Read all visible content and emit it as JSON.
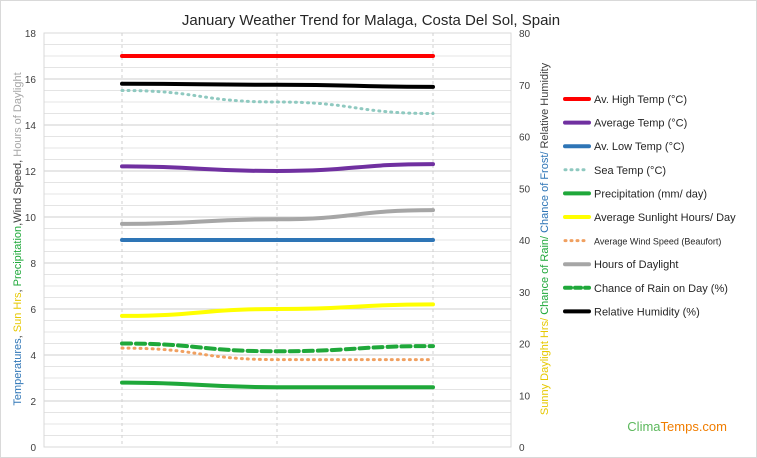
{
  "chart_data": {
    "type": "line",
    "title": "January Weather Trend for Malaga, Costa Del Sol, Spain",
    "x": [
      "1",
      "2",
      "3"
    ],
    "y_left": {
      "range": [
        0,
        18
      ],
      "ticks": [
        "0",
        "2",
        "4",
        "6",
        "8",
        "10",
        "12",
        "14",
        "16",
        "18"
      ],
      "label_parts": [
        {
          "text": "Temperatures",
          "color": "#2e75b6"
        },
        {
          "text": ", ",
          "color": "#404040"
        },
        {
          "text": "Sun Hrs",
          "color": "#e6c800"
        },
        {
          "text": ", ",
          "color": "#404040"
        },
        {
          "text": "Precipitation",
          "color": "#1fa83a"
        },
        {
          "text": ",Wind Speed, ",
          "color": "#404040"
        },
        {
          "text": "Hours of Daylight",
          "color": "#a6a6a6"
        }
      ]
    },
    "y_right": {
      "range": [
        0,
        80
      ],
      "ticks": [
        "0",
        "10",
        "20",
        "30",
        "40",
        "50",
        "60",
        "70",
        "80"
      ],
      "label_parts": [
        {
          "text": "Sunny Daylight Hrs/",
          "color": "#e6c800"
        },
        {
          "text": " Chance of Rain/",
          "color": "#1fa83a"
        },
        {
          "text": " Chance of Frost/",
          "color": "#2e75b6"
        },
        {
          "text": " Relative Humidity",
          "color": "#404040"
        }
      ]
    },
    "grid": true,
    "legend_position": "right",
    "series": [
      {
        "name": "Av. High Temp (°C)",
        "axis": "left",
        "color": "#ff0000",
        "dash": "solid",
        "values": [
          17,
          17,
          17
        ]
      },
      {
        "name": "Average Temp (°C)",
        "axis": "left",
        "color": "#7030a0",
        "dash": "solid",
        "values": [
          12.2,
          12.0,
          12.3
        ]
      },
      {
        "name": "Av. Low Temp (°C)",
        "axis": "left",
        "color": "#2e75b6",
        "dash": "solid",
        "values": [
          9,
          9,
          9
        ]
      },
      {
        "name": "Sea Temp (°C)",
        "axis": "left",
        "color": "#8fc9c0",
        "dash": "dot",
        "values": [
          15.5,
          15.0,
          14.5
        ]
      },
      {
        "name": "Precipitation (mm/ day)",
        "axis": "left",
        "color": "#1fa83a",
        "dash": "solid",
        "values": [
          2.8,
          2.6,
          2.6
        ]
      },
      {
        "name": "Average Sunlight Hours/ Day",
        "axis": "left",
        "color": "#ffff00",
        "dash": "solid",
        "values": [
          5.7,
          6.0,
          6.2
        ]
      },
      {
        "name": "Average Wind Speed (Beaufort)",
        "axis": "left",
        "color": "#f0a060",
        "dash": "dot",
        "small_label": true,
        "values": [
          4.3,
          3.8,
          3.8
        ]
      },
      {
        "name": "Hours of Daylight",
        "axis": "left",
        "color": "#a6a6a6",
        "dash": "solid",
        "values": [
          9.7,
          9.9,
          10.3
        ]
      },
      {
        "name": "Chance of Rain on Day (%)",
        "axis": "right",
        "color": "#1fa83a",
        "dash": "dash",
        "values": [
          20,
          18.5,
          19.5
        ]
      },
      {
        "name": "Relative Humidity (%)",
        "axis": "right",
        "color": "#000000",
        "dash": "solid",
        "values": [
          70.2,
          70.0,
          69.6
        ]
      }
    ]
  },
  "watermark": {
    "brand_green": "Clima",
    "brand_rest": "Temps.com",
    "green": "#5cb85c",
    "orange": "#f07d00"
  }
}
